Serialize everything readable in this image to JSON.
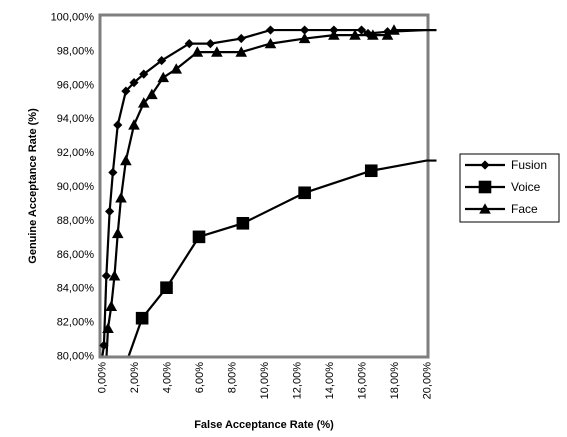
{
  "chart_data": {
    "type": "line",
    "title": "",
    "xlabel": "False Acceptance Rate (%)",
    "ylabel": "Genuine Acceptance Rate (%)",
    "xlim": [
      0,
      20
    ],
    "ylim": [
      80,
      100
    ],
    "x_ticks": [
      "0,00%",
      "2,00%",
      "4,00%",
      "6,00%",
      "8,00%",
      "10,00%",
      "12,00%",
      "14,00%",
      "16,00%",
      "18,00%",
      "20,00%"
    ],
    "y_ticks": [
      "80,00%",
      "82,00%",
      "84,00%",
      "86,00%",
      "88,00%",
      "90,00%",
      "92,00%",
      "94,00%",
      "96,00%",
      "98,00%",
      "100,00%"
    ],
    "grid": false,
    "legend": "right",
    "series": [
      {
        "name": "Fusion",
        "marker": "diamond",
        "color": "#000000",
        "points": [
          [
            0.0,
            79.6
          ],
          [
            0.15,
            80.6
          ],
          [
            0.3,
            84.7
          ],
          [
            0.5,
            88.5
          ],
          [
            0.7,
            90.8
          ],
          [
            1.0,
            93.6
          ],
          [
            1.5,
            95.6
          ],
          [
            2.0,
            96.1
          ],
          [
            2.6,
            96.6
          ],
          [
            3.7,
            97.4
          ],
          [
            5.4,
            98.4
          ],
          [
            6.7,
            98.4
          ],
          [
            8.6,
            98.7
          ],
          [
            10.4,
            99.2
          ],
          [
            12.5,
            99.2
          ],
          [
            14.3,
            99.2
          ],
          [
            16.0,
            99.2
          ],
          [
            16.4,
            99.0
          ],
          [
            17.6,
            99.1
          ],
          [
            20.0,
            99.2
          ]
        ]
      },
      {
        "name": "Voice",
        "marker": "square",
        "color": "#000000",
        "points": [
          [
            1.5,
            79.5
          ],
          [
            2.5,
            82.2
          ],
          [
            4.0,
            84.0
          ],
          [
            6.0,
            87.0
          ],
          [
            8.7,
            87.8
          ],
          [
            12.5,
            89.6
          ],
          [
            16.6,
            90.9
          ],
          [
            20.0,
            91.5
          ]
        ]
      },
      {
        "name": "Face",
        "marker": "triangle",
        "color": "#000000",
        "points": [
          [
            0.3,
            79.8
          ],
          [
            0.4,
            81.6
          ],
          [
            0.6,
            82.9
          ],
          [
            0.8,
            84.7
          ],
          [
            1.0,
            87.2
          ],
          [
            1.2,
            89.3
          ],
          [
            1.5,
            91.5
          ],
          [
            2.0,
            93.6
          ],
          [
            2.6,
            94.9
          ],
          [
            3.1,
            95.4
          ],
          [
            3.8,
            96.4
          ],
          [
            4.6,
            96.9
          ],
          [
            5.9,
            97.9
          ],
          [
            7.1,
            97.9
          ],
          [
            8.6,
            97.9
          ],
          [
            10.4,
            98.4
          ],
          [
            12.5,
            98.7
          ],
          [
            14.3,
            98.9
          ],
          [
            15.6,
            98.9
          ],
          [
            16.7,
            98.9
          ],
          [
            17.6,
            98.9
          ],
          [
            18.0,
            99.2
          ],
          [
            20.0,
            99.2
          ]
        ]
      }
    ]
  }
}
